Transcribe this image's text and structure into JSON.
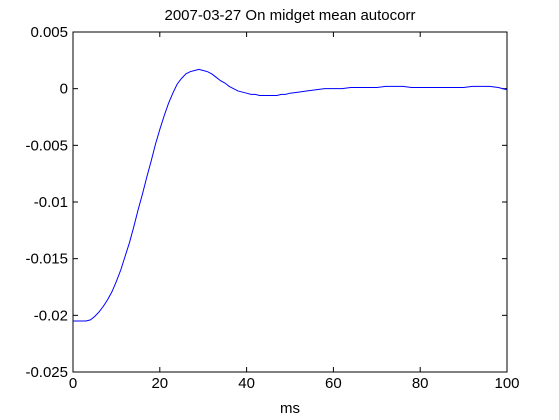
{
  "chart_data": {
    "type": "line",
    "title": "2007-03-27 On midget mean autocorr",
    "xlabel": "ms",
    "ylabel": "",
    "xlim": [
      0,
      100
    ],
    "ylim": [
      -0.025,
      0.005
    ],
    "xticks": [
      0,
      20,
      40,
      60,
      80,
      100
    ],
    "xtick_labels": [
      "0",
      "20",
      "40",
      "60",
      "80",
      "100"
    ],
    "yticks": [
      -0.025,
      -0.02,
      -0.015,
      -0.01,
      -0.005,
      0,
      0.005
    ],
    "ytick_labels": [
      "-0.025",
      "-0.02",
      "-0.015",
      "-0.01",
      "-0.005",
      "0",
      "0.005"
    ],
    "grid": false,
    "series": [
      {
        "color": "#0000ff",
        "x": [
          0,
          1,
          2,
          3,
          4,
          5,
          6,
          7,
          8,
          9,
          10,
          11,
          12,
          13,
          14,
          15,
          16,
          17,
          18,
          19,
          20,
          21,
          22,
          23,
          24,
          25,
          26,
          27,
          28,
          29,
          30,
          31,
          32,
          33,
          34,
          35,
          36,
          37,
          38,
          39,
          40,
          41,
          42,
          43,
          44,
          45,
          46,
          47,
          48,
          49,
          50,
          52,
          54,
          56,
          58,
          60,
          62,
          64,
          66,
          68,
          70,
          72,
          74,
          76,
          78,
          80,
          82,
          84,
          86,
          88,
          90,
          92,
          94,
          96,
          98,
          99,
          100
        ],
        "y": [
          -0.0205,
          -0.0205,
          -0.0205,
          -0.0205,
          -0.0204,
          -0.0201,
          -0.0197,
          -0.0192,
          -0.0186,
          -0.0179,
          -0.017,
          -0.016,
          -0.0148,
          -0.0136,
          -0.0122,
          -0.0107,
          -0.0093,
          -0.0078,
          -0.0064,
          -0.0049,
          -0.0036,
          -0.0024,
          -0.0013,
          -0.0004,
          0.0004,
          0.0009,
          0.0013,
          0.0015,
          0.0016,
          0.0017,
          0.0016,
          0.0015,
          0.0013,
          0.001,
          0.0007,
          0.0005,
          0.0002,
          0.0,
          -0.0002,
          -0.0003,
          -0.0004,
          -0.0005,
          -0.0005,
          -0.0006,
          -0.0006,
          -0.0006,
          -0.0006,
          -0.0006,
          -0.0005,
          -0.0005,
          -0.0004,
          -0.0003,
          -0.0002,
          -0.0001,
          0.0,
          0.0,
          0.0,
          0.0001,
          0.0001,
          0.0001,
          0.0001,
          0.0002,
          0.0002,
          0.0002,
          0.0001,
          0.0001,
          0.0001,
          0.0001,
          0.0001,
          0.0001,
          0.0001,
          0.0002,
          0.0002,
          0.0002,
          0.0001,
          0.0,
          -0.0001
        ]
      }
    ]
  }
}
